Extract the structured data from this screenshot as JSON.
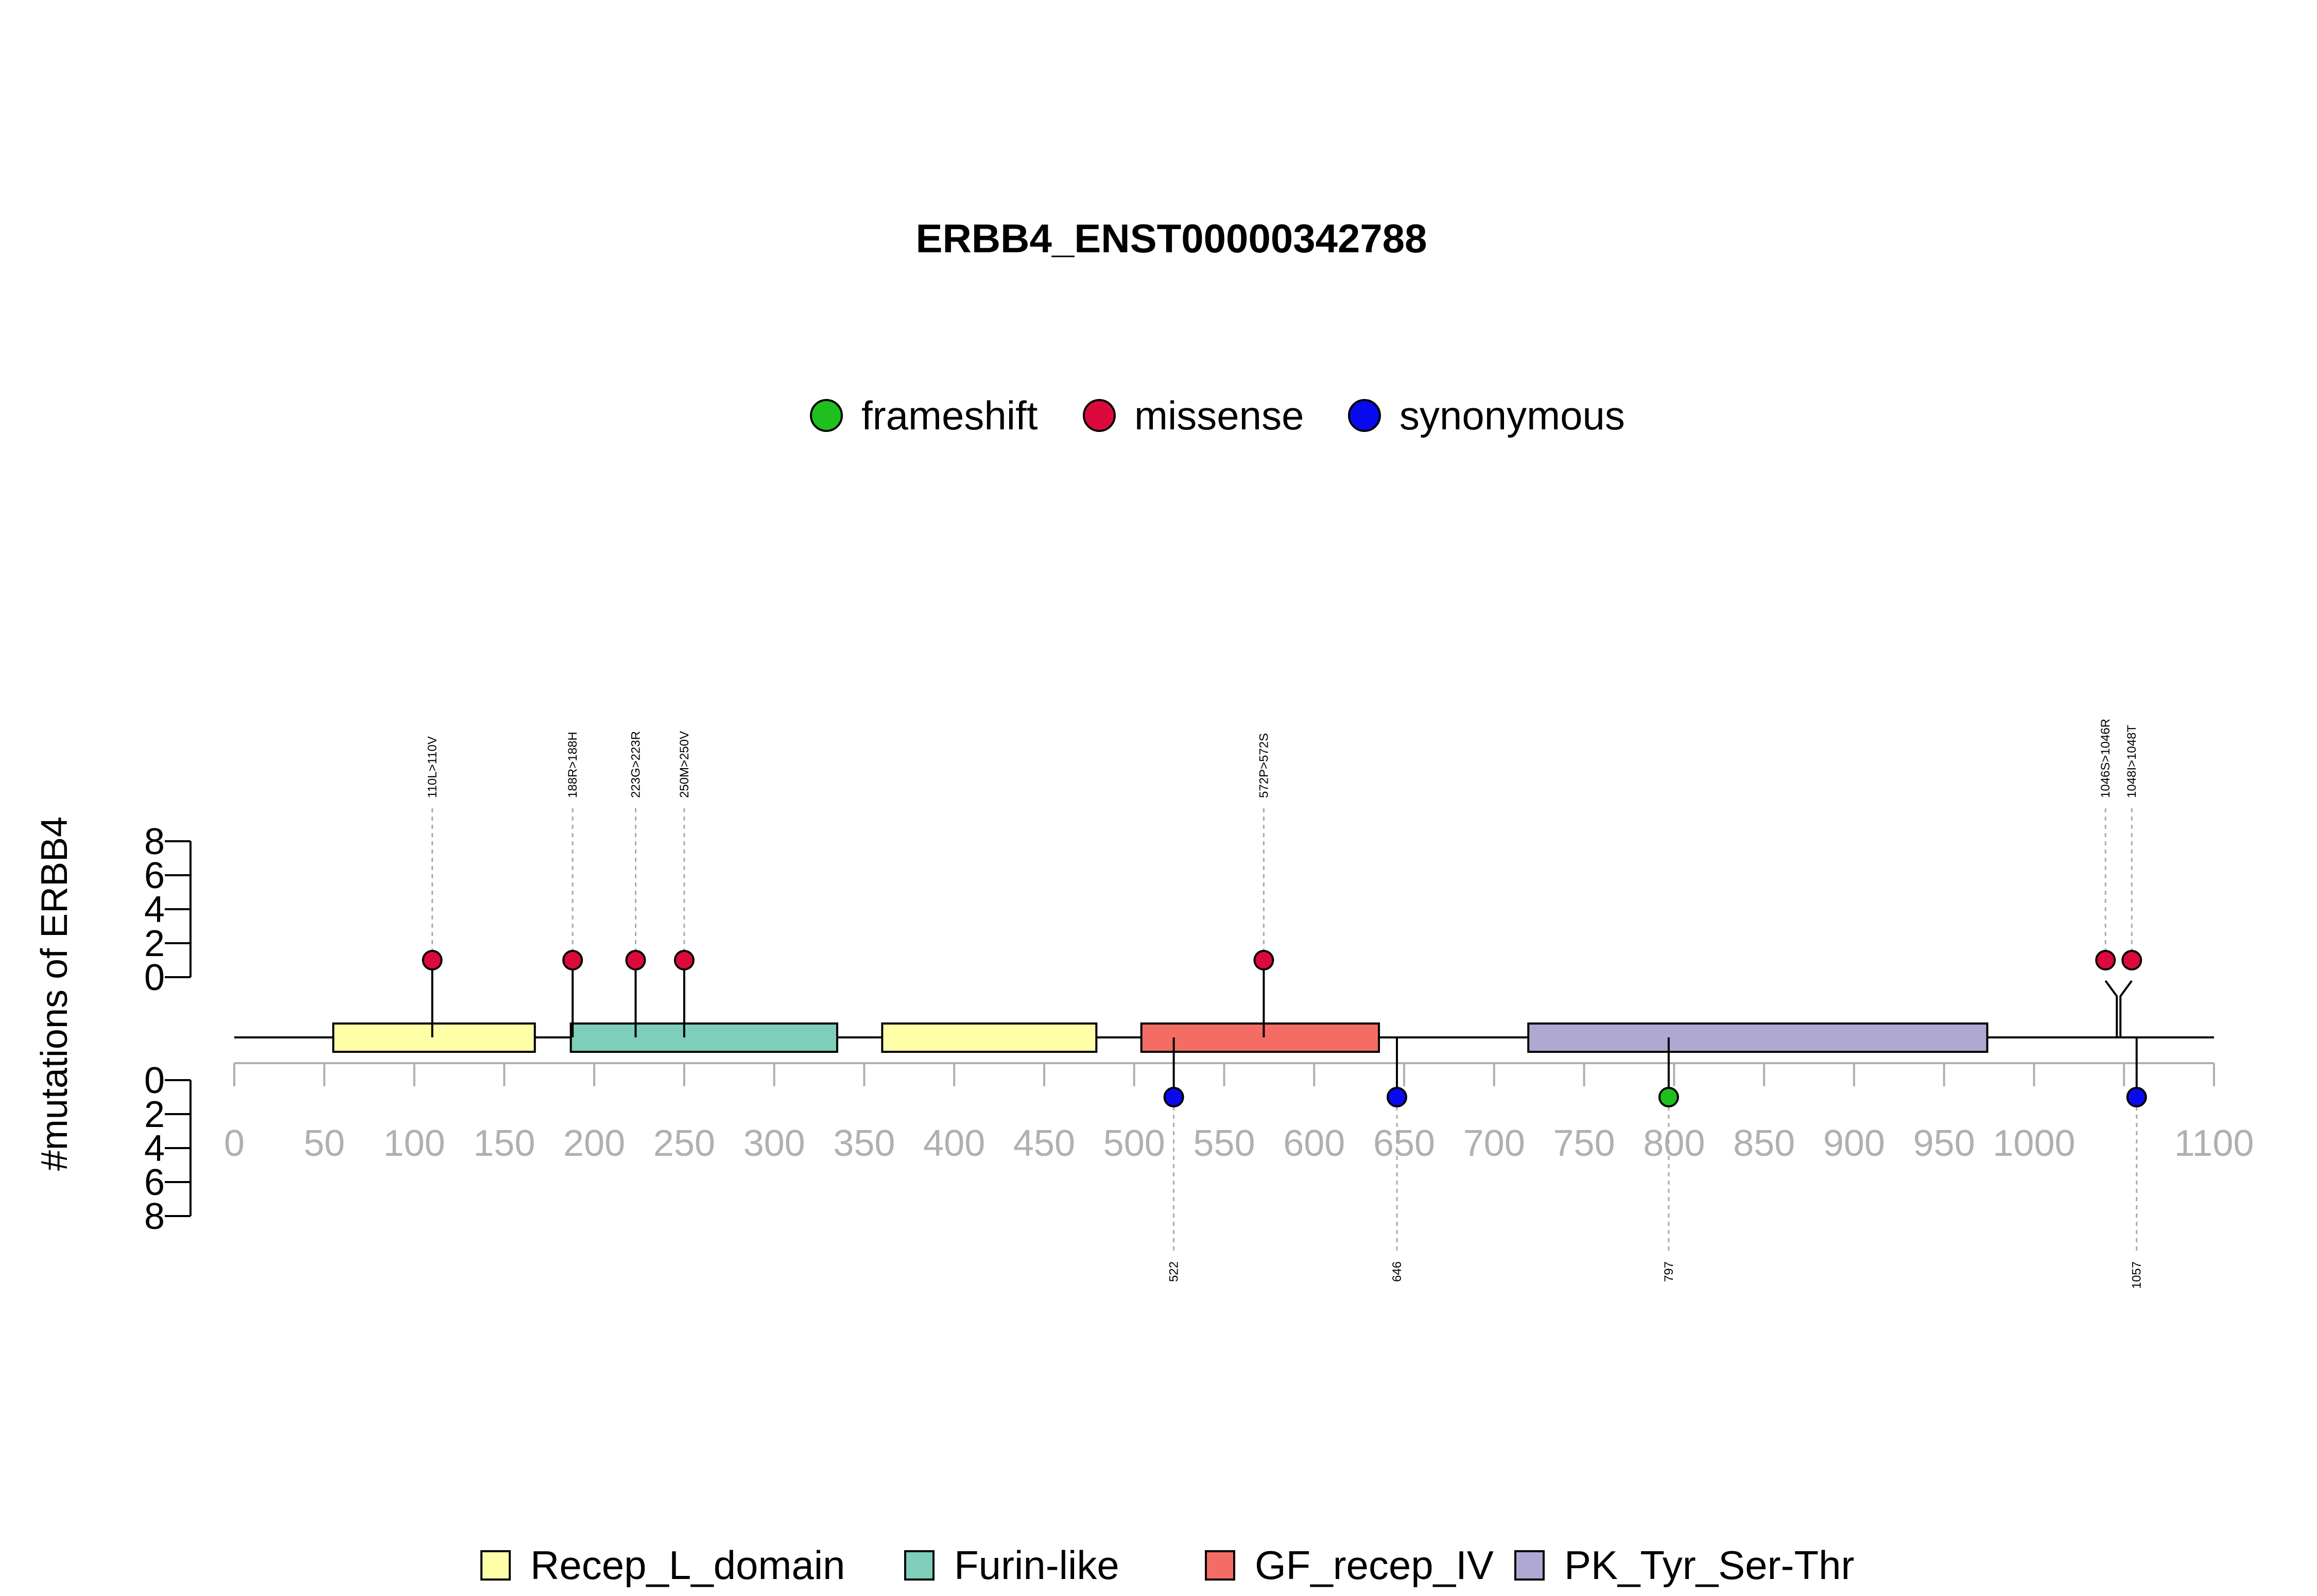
{
  "colors": {
    "frameshift": "#1fbf1f",
    "missense": "#dc0a3c",
    "synonymous": "#0a0af0",
    "Recep_L_domain": "#ffffa8",
    "Furin-like": "#7fcdbb",
    "GF_recep_IV": "#f46d64",
    "PK_Tyr_Ser-Thr": "#b0a8d3",
    "axis_gray": "#b0b0b0"
  },
  "chart_data": {
    "type": "lollipop",
    "title": "ERBB4_ENST00000342788",
    "ylabel": "#mutations of ERBB4",
    "xlim": [
      0,
      1100
    ],
    "x_ticks": [
      0,
      50,
      100,
      150,
      200,
      250,
      300,
      350,
      400,
      450,
      500,
      550,
      600,
      650,
      700,
      750,
      800,
      850,
      900,
      950,
      1000,
      1100
    ],
    "y_ticks_top": [
      0,
      2,
      4,
      6,
      8
    ],
    "y_ticks_bottom": [
      0,
      2,
      4,
      6,
      8
    ],
    "ylim": [
      0,
      8
    ],
    "mutation_legend": [
      {
        "label": "frameshift",
        "type": "frameshift"
      },
      {
        "label": "missense",
        "type": "missense"
      },
      {
        "label": "synonymous",
        "type": "synonymous"
      }
    ],
    "domain_legend": [
      {
        "label": "Recep_L_domain",
        "type": "Recep_L_domain"
      },
      {
        "label": "Furin-like",
        "type": "Furin-like"
      },
      {
        "label": "GF_recep_IV",
        "type": "GF_recep_IV"
      },
      {
        "label": "PK_Tyr_Ser-Thr",
        "type": "PK_Tyr_Ser-Thr"
      }
    ],
    "domains": [
      {
        "name": "Recep_L_domain",
        "start": 55,
        "end": 167
      },
      {
        "name": "Furin-like",
        "start": 187,
        "end": 335
      },
      {
        "name": "Recep_L_domain",
        "start": 360,
        "end": 479
      },
      {
        "name": "GF_recep_IV",
        "start": 504,
        "end": 636
      },
      {
        "name": "PK_Tyr_Ser-Thr",
        "start": 719,
        "end": 974
      }
    ],
    "mutations_top": [
      {
        "position": 110,
        "label": "110L>110V",
        "type": "missense",
        "count": 1
      },
      {
        "position": 188,
        "label": "188R>188H",
        "type": "missense",
        "count": 1
      },
      {
        "position": 223,
        "label": "223G>223R",
        "type": "missense",
        "count": 1
      },
      {
        "position": 250,
        "label": "250M>250V",
        "type": "missense",
        "count": 1
      },
      {
        "position": 572,
        "label": "572P>572S",
        "type": "missense",
        "count": 1
      },
      {
        "position": 1046,
        "label": "1046S>1046R",
        "type": "missense",
        "count": 1
      },
      {
        "position": 1048,
        "label": "1048I>1048T",
        "type": "missense",
        "count": 1
      }
    ],
    "mutations_bottom": [
      {
        "position": 522,
        "label": "522",
        "type": "synonymous",
        "count": 1
      },
      {
        "position": 646,
        "label": "646",
        "type": "synonymous",
        "count": 1
      },
      {
        "position": 797,
        "label": "797",
        "type": "frameshift",
        "count": 1
      },
      {
        "position": 1057,
        "label": "1057",
        "type": "synonymous",
        "count": 1
      }
    ]
  }
}
